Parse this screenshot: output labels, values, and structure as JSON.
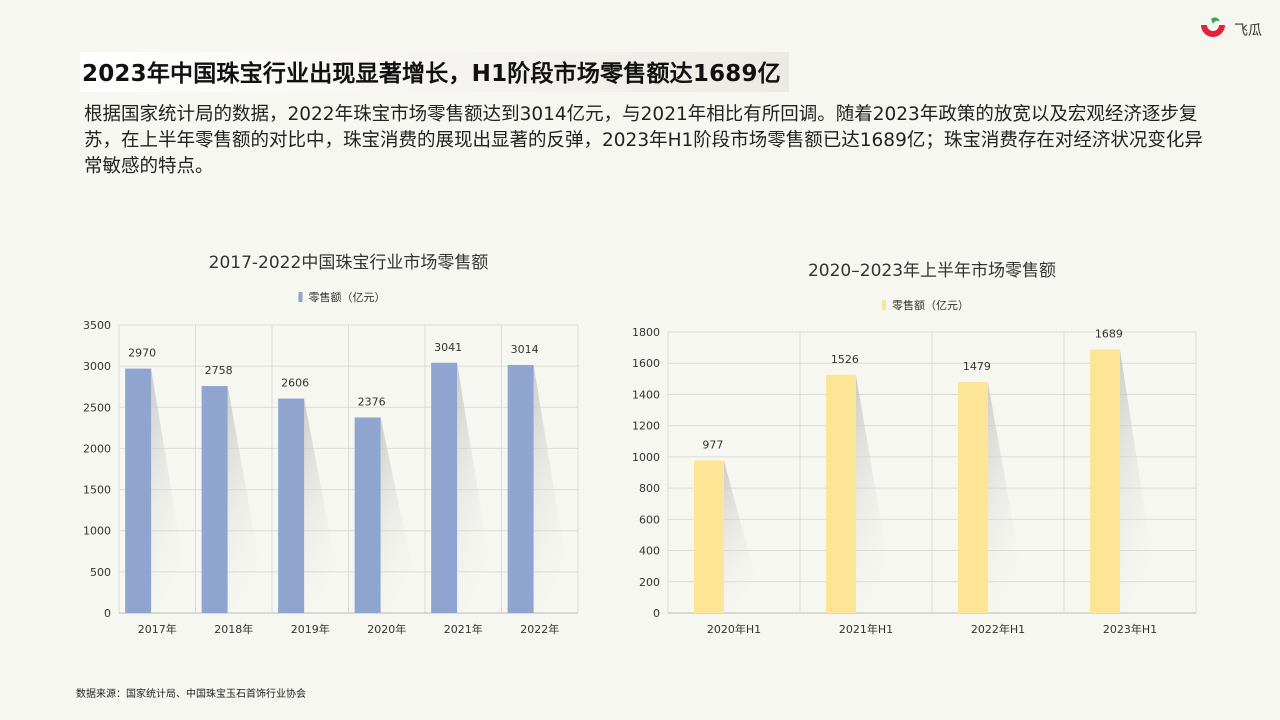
{
  "brand": {
    "name": "飞瓜",
    "accent": "#e5203c"
  },
  "title": "2023年中国珠宝行业出现显著增长，H1阶段市场零售额达1689亿",
  "description": "根据国家统计局的数据，2022年珠宝市场零售额达到3014亿元，与2021年相比有所回调。随着2023年政策的放宽以及宏观经济逐步复苏，在上半年零售额的对比中，珠宝消费的展现出显著的反弹，2023年H1阶段市场零售额已达1689亿；珠宝消费存在对经济状况变化异常敏感的特点。",
  "source": "数据来源：国家统计局、中国珠宝玉石首饰行业协会",
  "chart_data": [
    {
      "type": "bar",
      "title": "2017-2022中国珠宝行业市场零售额",
      "categories": [
        "2017年",
        "2018年",
        "2019年",
        "2020年",
        "2021年",
        "2022年"
      ],
      "series": [
        {
          "name": "零售额（亿元）",
          "values": [
            2970,
            2758,
            2606,
            2376,
            3041,
            3014
          ],
          "color": "#8fa5cf"
        }
      ],
      "ylim": [
        0,
        3500
      ],
      "yticks": [
        0,
        500,
        1000,
        1500,
        2000,
        2500,
        3000,
        3500
      ],
      "grid": true,
      "legend": "top-center"
    },
    {
      "type": "bar",
      "title": "2020–2023年上半年市场零售额",
      "categories": [
        "2020年H1",
        "2021年H1",
        "2022年H1",
        "2023年H1"
      ],
      "series": [
        {
          "name": "零售额（亿元）",
          "values": [
            977,
            1526,
            1479,
            1689
          ],
          "color": "#fde596"
        }
      ],
      "ylim": [
        0,
        1800
      ],
      "yticks": [
        0,
        200,
        400,
        600,
        800,
        1000,
        1200,
        1400,
        1600,
        1800
      ],
      "grid": true,
      "legend": "top-center"
    }
  ]
}
